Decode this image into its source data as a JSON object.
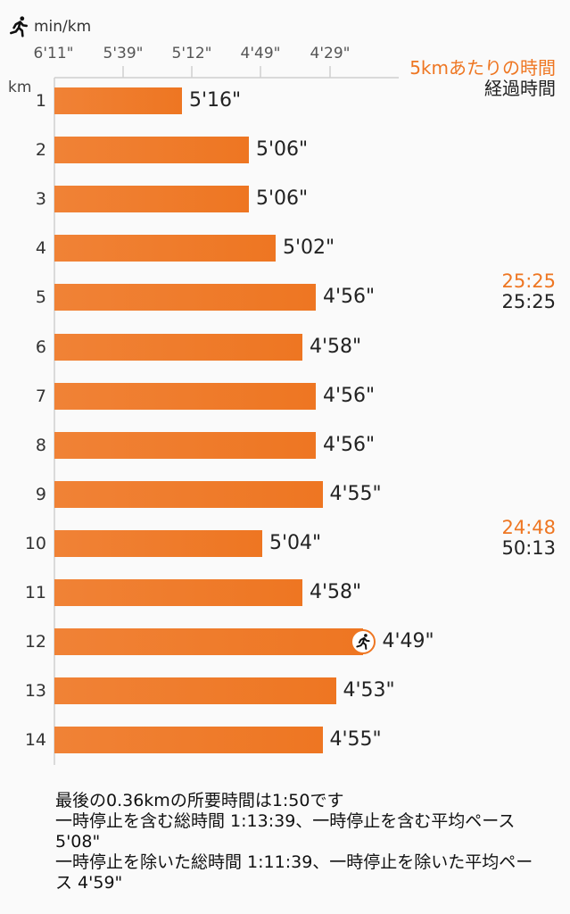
{
  "header": {
    "unit_label": "min/km",
    "runner_icon": "runner-icon",
    "km_label": "km"
  },
  "legend": {
    "five_km_label": "5kmあたりの時間",
    "elapsed_label": "経過時間",
    "accent_color": "#ee7622"
  },
  "chart_data": {
    "type": "bar",
    "orientation": "horizontal",
    "x_axis_ticks": [
      "6'11\"",
      "5'39\"",
      "5'12\"",
      "4'49\"",
      "4'29\""
    ],
    "ylabel": "km",
    "categories": [
      "1",
      "2",
      "3",
      "4",
      "5",
      "6",
      "7",
      "8",
      "9",
      "10",
      "11",
      "12",
      "13",
      "14"
    ],
    "values": [
      "5'16\"",
      "5'06\"",
      "5'06\"",
      "5'02\"",
      "4'56\"",
      "4'58\"",
      "4'56\"",
      "4'56\"",
      "4'55\"",
      "5'04\"",
      "4'58\"",
      "4'49\"",
      "4'53\"",
      "4'55\""
    ],
    "values_seconds": [
      316,
      306,
      306,
      302,
      296,
      298,
      296,
      296,
      295,
      304,
      298,
      289,
      293,
      295
    ],
    "fastest_index": 11,
    "splits": [
      {
        "at_km": "5",
        "five_km_time": "25:25",
        "elapsed": "25:25"
      },
      {
        "at_km": "10",
        "five_km_time": "24:48",
        "elapsed": "50:13"
      }
    ]
  },
  "footer": {
    "lines": [
      "最後の0.36kmの所要時間は1:50です",
      "一時停止を含む総時間 1:13:39、一時停止を含む平均ペース 5'08\"",
      "一時停止を除いた総時間 1:11:39、一時停止を除いた平均ペース 4'59\""
    ]
  }
}
